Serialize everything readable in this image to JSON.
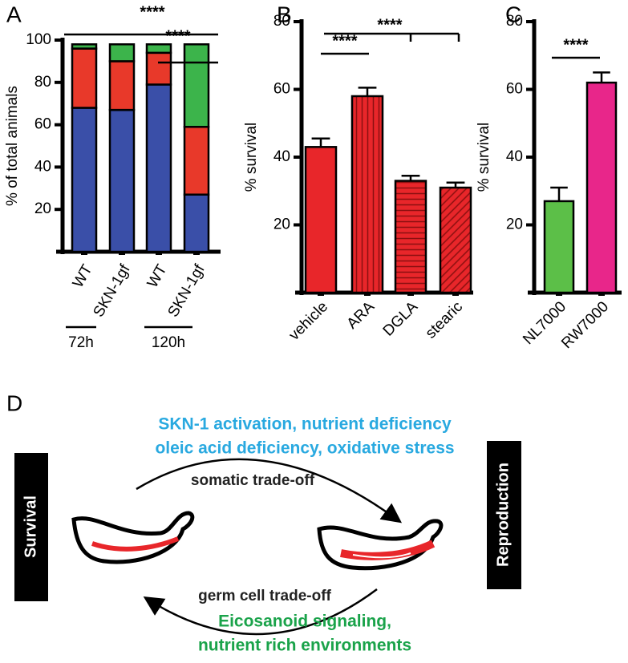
{
  "chart_data": [
    {
      "label": "A",
      "type": "stacked_bar",
      "ylabel": "% of total animals",
      "categories": [
        "WT",
        "SKN-1gf",
        "WT",
        "SKN-1gf"
      ],
      "groups": [
        "72h",
        "120h"
      ],
      "series": [
        {
          "color": "#3a4fa8",
          "values": [
            68,
            67,
            79,
            27
          ]
        },
        {
          "color": "#e8392a",
          "values": [
            28,
            23,
            15,
            32
          ]
        },
        {
          "color": "#3cb44b",
          "values": [
            2,
            8,
            4,
            39
          ]
        }
      ],
      "ylim": [
        0,
        100
      ],
      "yticks": [
        20,
        40,
        60,
        80,
        100
      ],
      "annotations": [
        "****",
        "****"
      ]
    },
    {
      "label": "B",
      "type": "bar",
      "ylabel": "% survival",
      "categories": [
        "vehicle",
        "ARA",
        "DGLA",
        "stearic"
      ],
      "values": [
        43,
        58,
        33,
        31
      ],
      "errors": [
        2.5,
        2.5,
        1.5,
        1.5
      ],
      "color": "#e8262a",
      "patterns": [
        "solid",
        "vertical",
        "horizontal",
        "diagonal"
      ],
      "ylim": [
        0,
        80
      ],
      "yticks": [
        20,
        40,
        60,
        80
      ],
      "annotations": [
        "****",
        "****"
      ]
    },
    {
      "label": "C",
      "type": "bar",
      "ylabel": "% survival",
      "categories": [
        "NL7000",
        "RW7000"
      ],
      "values": [
        27,
        62
      ],
      "errors": [
        4,
        3
      ],
      "colors": [
        "#5cbf48",
        "#e8268a"
      ],
      "ylim": [
        0,
        80
      ],
      "yticks": [
        20,
        40,
        60,
        80
      ],
      "annotations": [
        "****"
      ]
    }
  ],
  "diagram": {
    "label": "D",
    "top_text": [
      "SKN-1 activation, nutrient deficiency",
      "oleic acid deficiency, oxidative stress"
    ],
    "top_arrow": "somatic trade-off",
    "bottom_arrow": "germ cell trade-off",
    "bottom_text": [
      "Eicosanoid signaling,",
      "nutrient rich environments"
    ],
    "left": "Survival",
    "right": "Reproduction"
  }
}
